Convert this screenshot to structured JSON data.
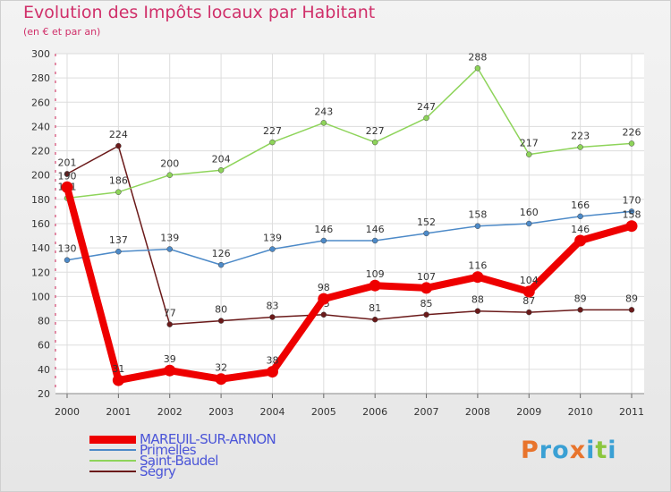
{
  "header": {
    "title": "Evolution des Impôts locaux par Habitant",
    "subtitle": "(en € et par an)"
  },
  "logo": {
    "letters": [
      "P",
      "r",
      "o",
      "x",
      "i",
      "t",
      "i"
    ],
    "colors": [
      "#e8742c",
      "#3aa0d4",
      "#3aa0d4",
      "#e8742c",
      "#3aa0d4",
      "#8cc63e",
      "#3aa0d4"
    ]
  },
  "chart_data": {
    "type": "line",
    "categories": [
      "2000",
      "2001",
      "2002",
      "2003",
      "2004",
      "2005",
      "2006",
      "2007",
      "2008",
      "2009",
      "2010",
      "2011"
    ],
    "ylim": [
      20,
      300
    ],
    "yticks": [
      20,
      40,
      60,
      80,
      100,
      120,
      140,
      160,
      180,
      200,
      220,
      240,
      260,
      280,
      300
    ],
    "grid": true,
    "legend_position": "bottom-left",
    "series": [
      {
        "name": "Ségry",
        "color": "#6b1a1a",
        "values": [
          201,
          224,
          77,
          80,
          83,
          85,
          81,
          85,
          88,
          87,
          89,
          89
        ]
      },
      {
        "name": "Saint-Baudel",
        "color": "#8ed45a",
        "values": [
          181,
          186,
          200,
          204,
          227,
          243,
          227,
          247,
          288,
          217,
          223,
          226
        ]
      },
      {
        "name": "Primelles",
        "color": "#4d8ac8",
        "values": [
          130,
          137,
          139,
          126,
          139,
          146,
          146,
          152,
          158,
          160,
          166,
          170
        ]
      },
      {
        "name": "MAREUIL-SUR-ARNON",
        "color": "#ee0000",
        "values": [
          190,
          31,
          39,
          32,
          38,
          98,
          109,
          107,
          116,
          104,
          146,
          158
        ]
      }
    ],
    "legend_order": [
      "MAREUIL-SUR-ARNON",
      "Primelles",
      "Saint-Baudel",
      "Ségry"
    ]
  }
}
